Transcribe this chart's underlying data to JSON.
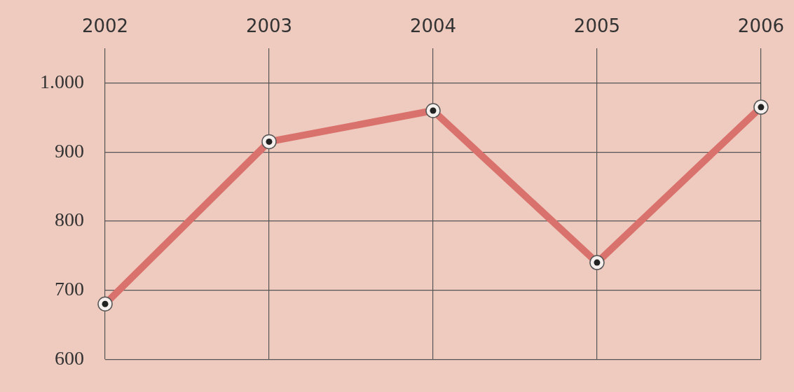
{
  "chart_data": {
    "type": "line",
    "categories": [
      "2002",
      "2003",
      "2004",
      "2005",
      "2006"
    ],
    "series": [
      {
        "color": "#d9716c",
        "values": [
          680,
          915,
          960,
          740,
          965
        ]
      }
    ],
    "ylim": [
      600,
      1050
    ],
    "yticks": [
      600,
      700,
      800,
      900,
      {
        "value": 1000,
        "label": "1.000"
      }
    ],
    "grid": true,
    "legend": false,
    "marker": "circle",
    "line_style": "solid"
  }
}
